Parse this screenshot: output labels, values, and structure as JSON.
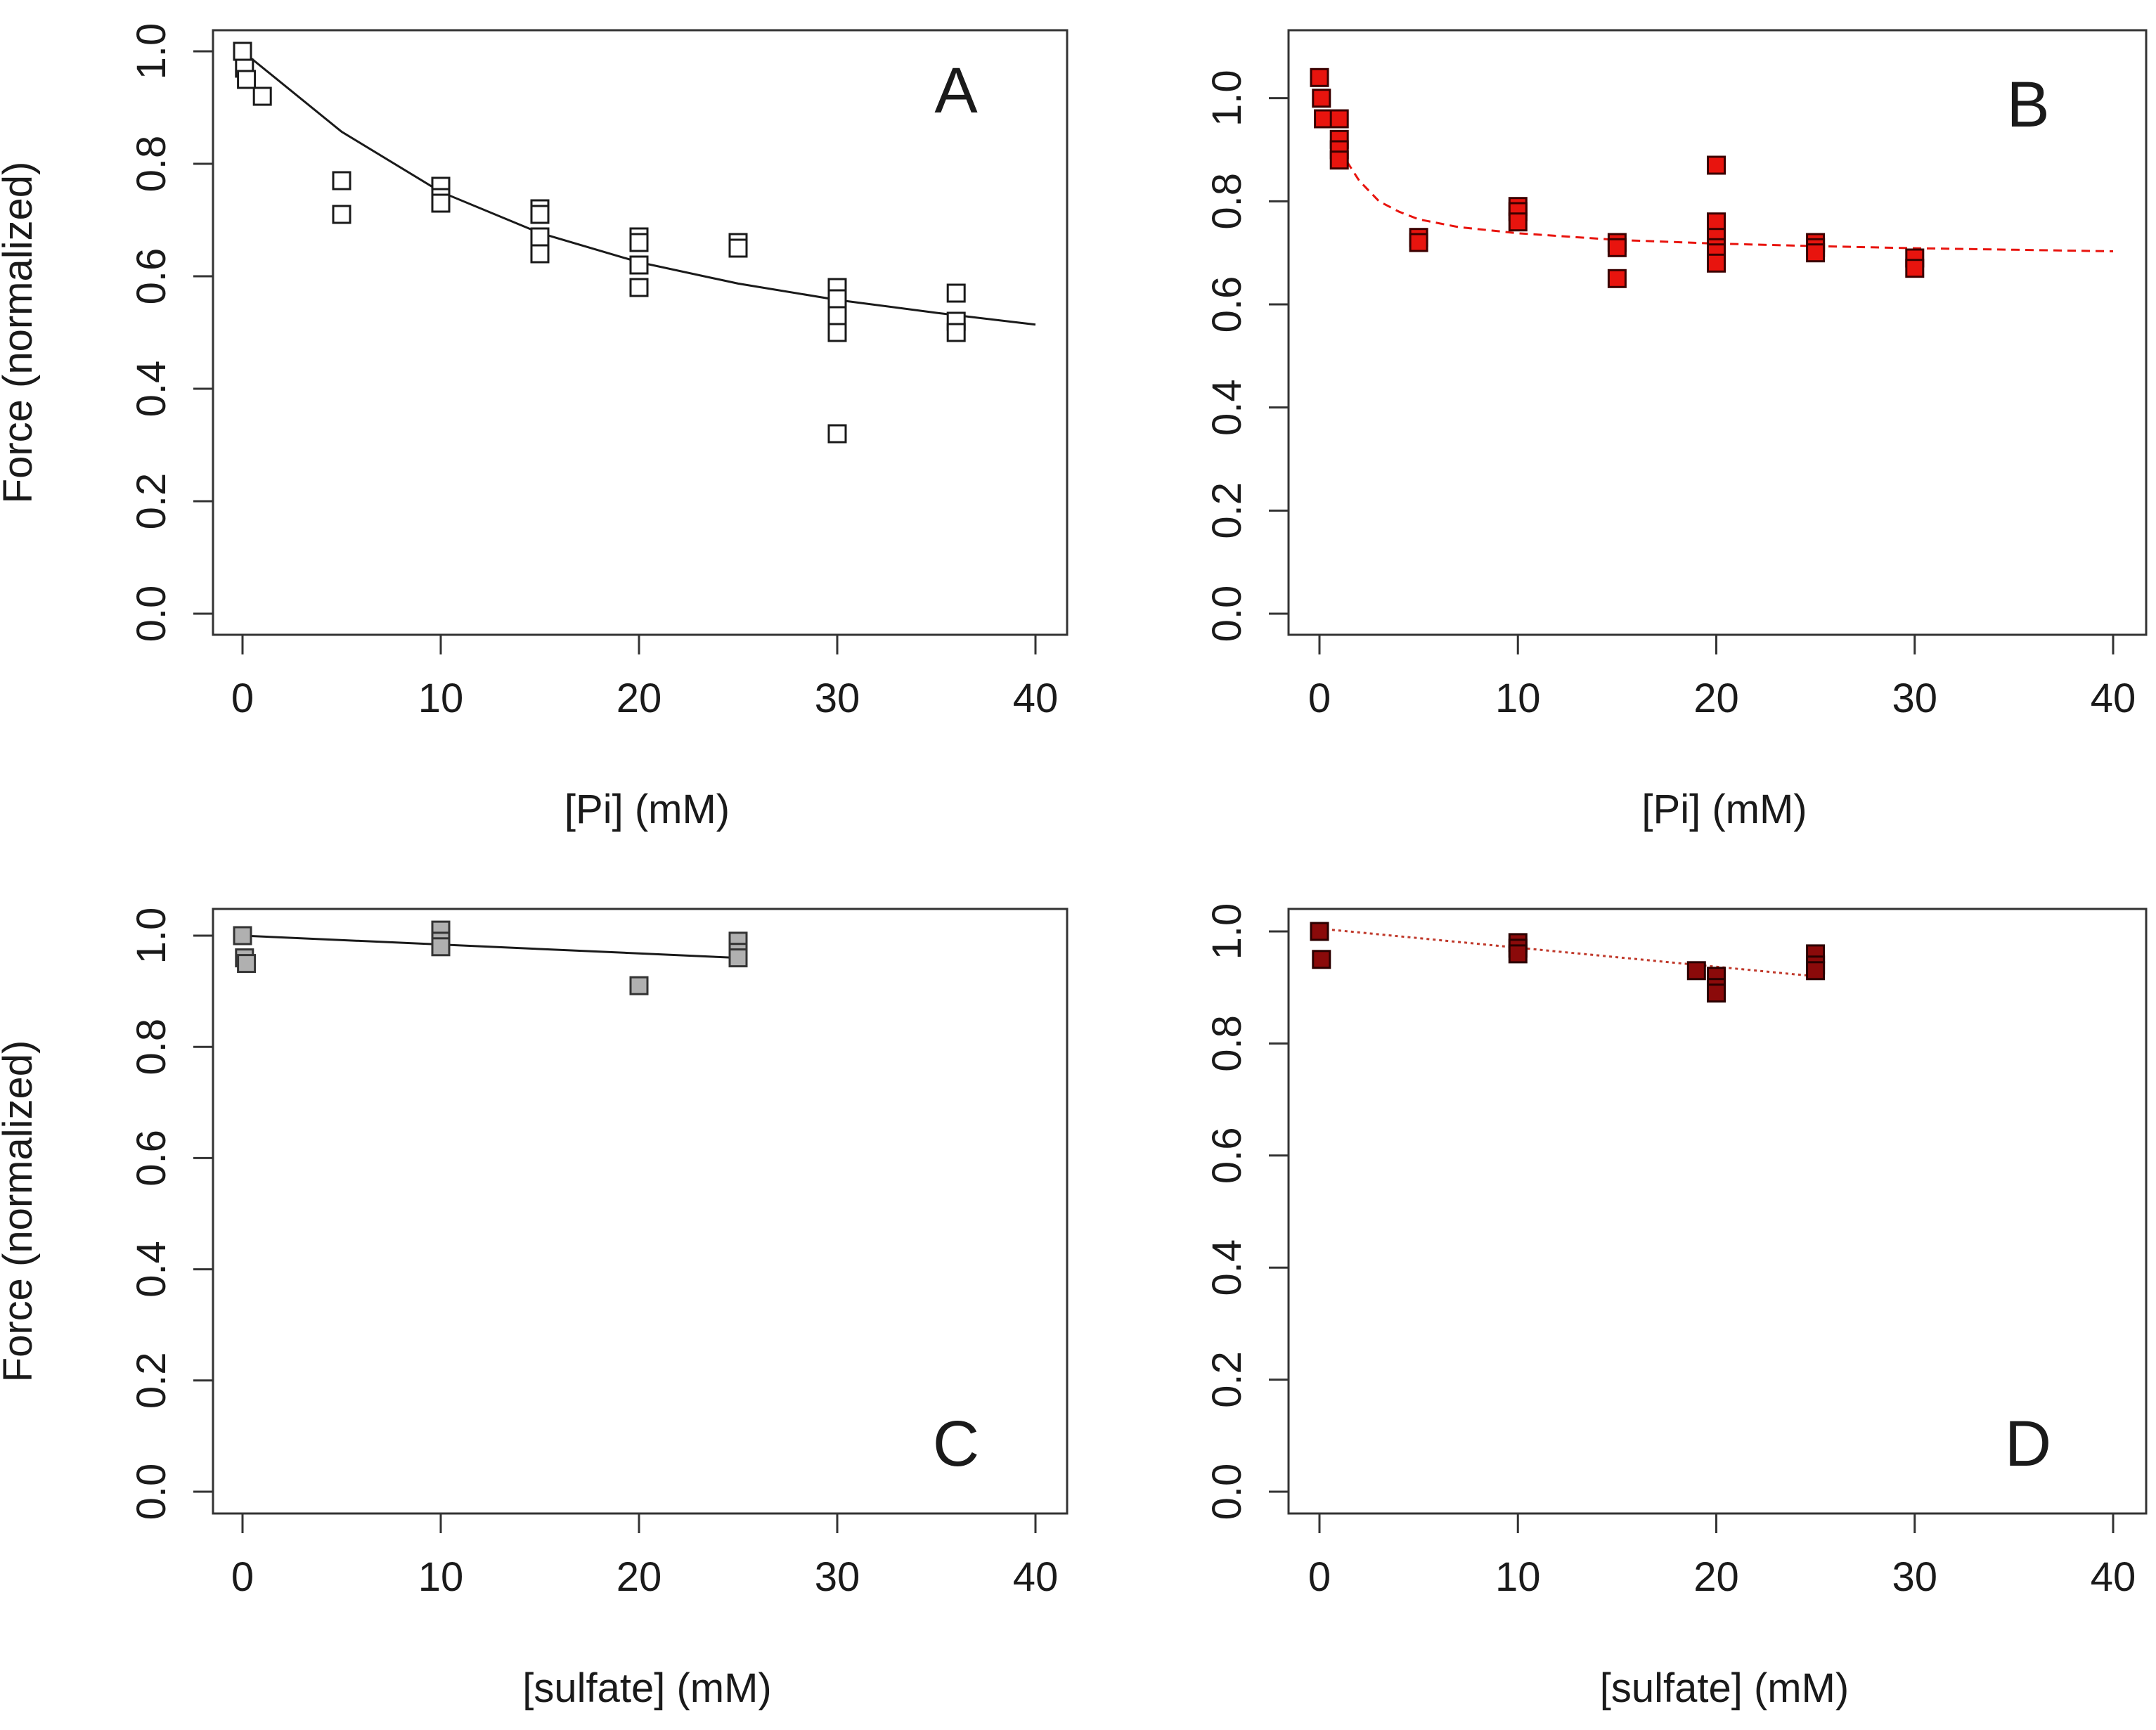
{
  "chart_data": [
    {
      "type": "scatter",
      "panel_label": "A",
      "xlabel": "[Pi] (mM)",
      "ylabel": "Force (normalized)",
      "xlim": [
        0,
        40
      ],
      "ylim": [
        0,
        1.0
      ],
      "xticks": [
        "0",
        "10",
        "20",
        "30",
        "40"
      ],
      "yticks": [
        "0.0",
        "0.2",
        "0.4",
        "0.6",
        "0.8",
        "1.0"
      ],
      "marker": {
        "fill": "#ffffff",
        "stroke": "#1a1a1a"
      },
      "points": [
        [
          0,
          1.0
        ],
        [
          0.1,
          0.97
        ],
        [
          0.2,
          0.95
        ],
        [
          1,
          0.92
        ],
        [
          5,
          0.77
        ],
        [
          5,
          0.71
        ],
        [
          10,
          0.76
        ],
        [
          10,
          0.74
        ],
        [
          10,
          0.73
        ],
        [
          15,
          0.72
        ],
        [
          15,
          0.71
        ],
        [
          15,
          0.67
        ],
        [
          15,
          0.64
        ],
        [
          20,
          0.67
        ],
        [
          20,
          0.66
        ],
        [
          20,
          0.62
        ],
        [
          20,
          0.58
        ],
        [
          25,
          0.66
        ],
        [
          25,
          0.65
        ],
        [
          30,
          0.58
        ],
        [
          30,
          0.56
        ],
        [
          30,
          0.53
        ],
        [
          30,
          0.5
        ],
        [
          30,
          0.32
        ],
        [
          36,
          0.57
        ],
        [
          36,
          0.52
        ],
        [
          36,
          0.5
        ]
      ],
      "fit": {
        "x": [
          0,
          5,
          10,
          15,
          20,
          25,
          30,
          35,
          40
        ],
        "y": [
          1.0,
          0.857,
          0.75,
          0.677,
          0.625,
          0.587,
          0.558,
          0.535,
          0.514
        ],
        "color": "#1a1a1a",
        "dash": "solid"
      }
    },
    {
      "type": "scatter",
      "panel_label": "B",
      "xlabel": "[Pi] (mM)",
      "ylabel": "",
      "xlim": [
        0,
        40
      ],
      "ylim": [
        0,
        1.05
      ],
      "xticks": [
        "0",
        "10",
        "20",
        "30",
        "40"
      ],
      "yticks": [
        "0.0",
        "0.2",
        "0.4",
        "0.6",
        "0.8",
        "1.0"
      ],
      "marker": {
        "fill": "#e8140e",
        "stroke": "#3a0000"
      },
      "points": [
        [
          0,
          1.04
        ],
        [
          0.1,
          1.0
        ],
        [
          0.2,
          0.96
        ],
        [
          1,
          0.96
        ],
        [
          1,
          0.92
        ],
        [
          1,
          0.9
        ],
        [
          1,
          0.88
        ],
        [
          5,
          0.73
        ],
        [
          5,
          0.72
        ],
        [
          10,
          0.79
        ],
        [
          10,
          0.78
        ],
        [
          10,
          0.76
        ],
        [
          15,
          0.72
        ],
        [
          15,
          0.71
        ],
        [
          15,
          0.65
        ],
        [
          20,
          0.87
        ],
        [
          20,
          0.76
        ],
        [
          20,
          0.73
        ],
        [
          20,
          0.71
        ],
        [
          20,
          0.7
        ],
        [
          20,
          0.68
        ],
        [
          25,
          0.72
        ],
        [
          25,
          0.71
        ],
        [
          25,
          0.7
        ],
        [
          30,
          0.69
        ],
        [
          30,
          0.67
        ]
      ],
      "fit": {
        "x": [
          1,
          2,
          3,
          4,
          5,
          7,
          10,
          15,
          20,
          25,
          30,
          35,
          40
        ],
        "y": [
          0.9,
          0.84,
          0.8,
          0.78,
          0.765,
          0.75,
          0.738,
          0.725,
          0.718,
          0.713,
          0.709,
          0.706,
          0.703
        ],
        "color": "#e8140e",
        "dash": "dashed"
      }
    },
    {
      "type": "scatter",
      "panel_label": "C",
      "xlabel": "[sulfate] (mM)",
      "ylabel": "Force (normalized)",
      "xlim": [
        0,
        40
      ],
      "ylim": [
        0,
        1.0
      ],
      "xticks": [
        "0",
        "10",
        "20",
        "30",
        "40"
      ],
      "yticks": [
        "0.0",
        "0.2",
        "0.4",
        "0.6",
        "0.8",
        "1.0"
      ],
      "marker": {
        "fill": "#b0b0b0",
        "stroke": "#333333"
      },
      "points": [
        [
          0,
          1.0
        ],
        [
          0.1,
          0.96
        ],
        [
          0.2,
          0.95
        ],
        [
          10,
          1.01
        ],
        [
          10,
          0.99
        ],
        [
          10,
          0.98
        ],
        [
          20,
          0.91
        ],
        [
          25,
          0.99
        ],
        [
          25,
          0.97
        ],
        [
          25,
          0.96
        ]
      ],
      "fit": {
        "x": [
          0,
          25
        ],
        "y": [
          1.0,
          0.96
        ],
        "color": "#1a1a1a",
        "dash": "solid"
      }
    },
    {
      "type": "scatter",
      "panel_label": "D",
      "xlabel": "[sulfate] (mM)",
      "ylabel": "",
      "xlim": [
        0,
        40
      ],
      "ylim": [
        0,
        1.0
      ],
      "xticks": [
        "0",
        "10",
        "20",
        "30",
        "40"
      ],
      "yticks": [
        "0.0",
        "0.2",
        "0.4",
        "0.6",
        "0.8",
        "1.0"
      ],
      "marker": {
        "fill": "#8b0a0a",
        "stroke": "#2a0000"
      },
      "points": [
        [
          0,
          1.0
        ],
        [
          0.1,
          0.95
        ],
        [
          10,
          0.98
        ],
        [
          10,
          0.97
        ],
        [
          10,
          0.96
        ],
        [
          19,
          0.93
        ],
        [
          20,
          0.92
        ],
        [
          20,
          0.9
        ],
        [
          20,
          0.89
        ],
        [
          25,
          0.96
        ],
        [
          25,
          0.94
        ],
        [
          25,
          0.93
        ]
      ],
      "fit": {
        "x": [
          0,
          25
        ],
        "y": [
          1.005,
          0.92
        ],
        "color": "#c0392b",
        "dash": "dotted"
      }
    }
  ]
}
